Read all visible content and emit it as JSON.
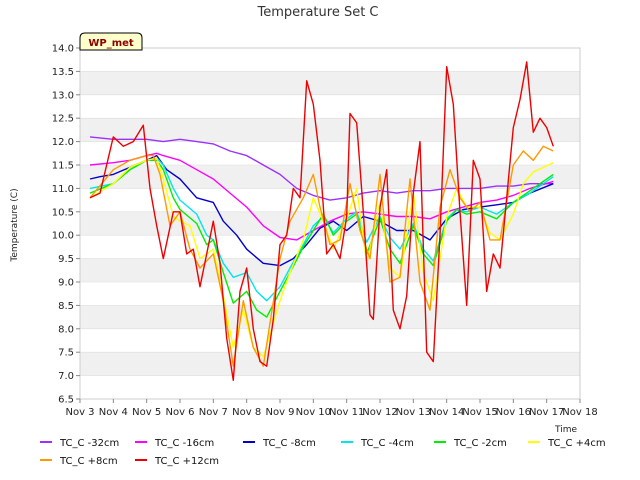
{
  "chart_data": {
    "type": "line",
    "title": "Temperature Set C",
    "xlabel": "Time",
    "ylabel": "Temperature (C)",
    "badge": "WP_met",
    "xlim": [
      3,
      18
    ],
    "ylim": [
      6.5,
      14.0
    ],
    "x_ticks": [
      {
        "v": 3,
        "label": "Nov 3"
      },
      {
        "v": 4,
        "label": "Nov 4"
      },
      {
        "v": 5,
        "label": "Nov 5"
      },
      {
        "v": 6,
        "label": "Nov 6"
      },
      {
        "v": 7,
        "label": "Nov 7"
      },
      {
        "v": 8,
        "label": "Nov 8"
      },
      {
        "v": 9,
        "label": "Nov 9"
      },
      {
        "v": 10,
        "label": "Nov 10"
      },
      {
        "v": 11,
        "label": "Nov 11"
      },
      {
        "v": 12,
        "label": "Nov 12"
      },
      {
        "v": 13,
        "label": "Nov 13"
      },
      {
        "v": 14,
        "label": "Nov 14"
      },
      {
        "v": 15,
        "label": "Nov 15"
      },
      {
        "v": 16,
        "label": "Nov 16"
      },
      {
        "v": 17,
        "label": "Nov 17"
      },
      {
        "v": 18,
        "label": "Nov 18"
      }
    ],
    "y_ticks": [
      "6.5",
      "7.0",
      "7.5",
      "8.0",
      "8.5",
      "9.0",
      "9.5",
      "10.0",
      "10.5",
      "11.0",
      "11.5",
      "12.0",
      "12.5",
      "13.0",
      "13.5",
      "14.0"
    ],
    "grid": "horizontal bands",
    "legend_position": "bottom",
    "series": [
      {
        "name": "TC_C -32cm",
        "color": "#9b30ff",
        "x": [
          3.3,
          4,
          5,
          5.5,
          6,
          6.5,
          7,
          7.5,
          8,
          8.5,
          9,
          9.5,
          10,
          10.5,
          11,
          11.5,
          12,
          12.5,
          13,
          13.5,
          14,
          14.5,
          15,
          15.5,
          16,
          16.5,
          17.2
        ],
        "y": [
          12.1,
          12.05,
          12.05,
          12.0,
          12.05,
          12.0,
          11.95,
          11.8,
          11.7,
          11.5,
          11.3,
          11.0,
          10.85,
          10.75,
          10.8,
          10.9,
          10.95,
          10.9,
          10.95,
          10.95,
          11.0,
          11.0,
          11.0,
          11.05,
          11.05,
          11.1,
          11.1
        ]
      },
      {
        "name": "TC_C -16cm",
        "color": "#ff00ff",
        "x": [
          3.3,
          4,
          4.5,
          5,
          5.3,
          5.5,
          6,
          6.5,
          7,
          7.5,
          8,
          8.5,
          9,
          9.5,
          10,
          10.5,
          11,
          11.5,
          12,
          12.5,
          13,
          13.5,
          14,
          14.5,
          15,
          15.5,
          16,
          16.5,
          17.2
        ],
        "y": [
          11.5,
          11.55,
          11.6,
          11.7,
          11.75,
          11.7,
          11.6,
          11.4,
          11.2,
          10.9,
          10.6,
          10.2,
          9.95,
          9.9,
          10.1,
          10.3,
          10.45,
          10.5,
          10.45,
          10.4,
          10.4,
          10.35,
          10.5,
          10.6,
          10.7,
          10.75,
          10.85,
          11.0,
          11.15
        ]
      },
      {
        "name": "TC_C -8cm",
        "color": "#0000cc",
        "x": [
          3.3,
          3.6,
          4,
          4.5,
          5,
          5.3,
          5.6,
          6,
          6.5,
          7,
          7.3,
          7.7,
          8,
          8.5,
          9,
          9.4,
          9.8,
          10.2,
          10.6,
          11,
          11.5,
          12,
          12.5,
          13,
          13.5,
          14,
          14.5,
          15,
          15.5,
          16,
          16.5,
          17.2
        ],
        "y": [
          11.2,
          11.25,
          11.3,
          11.45,
          11.6,
          11.7,
          11.4,
          11.2,
          10.8,
          10.7,
          10.3,
          10.0,
          9.7,
          9.4,
          9.35,
          9.5,
          9.8,
          10.15,
          10.3,
          10.1,
          10.4,
          10.3,
          10.1,
          10.1,
          9.9,
          10.35,
          10.55,
          10.6,
          10.65,
          10.7,
          10.9,
          11.1
        ]
      },
      {
        "name": "TC_C -4cm",
        "color": "#00e5ee",
        "x": [
          3.3,
          4,
          4.5,
          5,
          5.3,
          5.5,
          5.8,
          6,
          6.5,
          6.8,
          7,
          7.3,
          7.6,
          8,
          8.3,
          8.6,
          9,
          9.3,
          9.7,
          10,
          10.3,
          10.6,
          11,
          11.3,
          11.6,
          12,
          12.3,
          12.6,
          13,
          13.3,
          13.6,
          14,
          14.3,
          14.6,
          15,
          15.5,
          16,
          16.5,
          17.2
        ],
        "y": [
          11.0,
          11.1,
          11.4,
          11.6,
          11.65,
          11.5,
          11.0,
          10.75,
          10.45,
          10.0,
          9.9,
          9.4,
          9.1,
          9.2,
          8.8,
          8.6,
          8.9,
          9.3,
          9.8,
          10.2,
          10.4,
          10.05,
          10.35,
          10.5,
          9.85,
          10.4,
          9.95,
          9.7,
          10.25,
          9.7,
          9.45,
          10.35,
          10.55,
          10.5,
          10.6,
          10.45,
          10.7,
          10.9,
          11.25
        ]
      },
      {
        "name": "TC_C -2cm",
        "color": "#00ee00",
        "x": [
          3.3,
          4,
          4.5,
          5,
          5.3,
          5.5,
          5.8,
          6,
          6.5,
          6.8,
          7,
          7.3,
          7.6,
          8,
          8.3,
          8.6,
          9,
          9.3,
          9.7,
          10,
          10.3,
          10.6,
          11,
          11.3,
          11.6,
          12,
          12.3,
          12.6,
          13,
          13.3,
          13.6,
          14,
          14.3,
          14.6,
          15,
          15.5,
          16,
          16.5,
          17.2
        ],
        "y": [
          10.9,
          11.1,
          11.4,
          11.6,
          11.6,
          11.4,
          10.8,
          10.55,
          10.25,
          9.8,
          9.9,
          9.2,
          8.55,
          8.8,
          8.4,
          8.25,
          8.8,
          9.2,
          9.75,
          10.1,
          10.45,
          10.0,
          10.3,
          10.45,
          9.6,
          10.35,
          9.7,
          9.4,
          10.2,
          9.6,
          9.35,
          10.3,
          10.55,
          10.45,
          10.5,
          10.35,
          10.7,
          10.95,
          11.3
        ]
      },
      {
        "name": "TC_C +4cm",
        "color": "#ffff00",
        "x": [
          3.3,
          4,
          4.5,
          5,
          5.3,
          5.5,
          5.8,
          6,
          6.3,
          6.6,
          7,
          7.3,
          7.6,
          7.9,
          8.2,
          8.5,
          9,
          9.3,
          9.7,
          10,
          10.3,
          10.6,
          11,
          11.3,
          11.6,
          12,
          12.3,
          12.6,
          13,
          13.3,
          13.6,
          14,
          14.3,
          14.6,
          15,
          15.3,
          15.6,
          16,
          16.3,
          16.6,
          17.2
        ],
        "y": [
          10.8,
          11.1,
          11.45,
          11.6,
          11.65,
          11.2,
          10.4,
          10.3,
          10.2,
          9.5,
          9.7,
          8.7,
          7.6,
          8.4,
          7.6,
          7.4,
          8.6,
          9.2,
          9.9,
          10.8,
          10.3,
          9.7,
          10.35,
          11.0,
          9.4,
          10.7,
          9.3,
          9.1,
          10.9,
          9.2,
          8.6,
          10.4,
          11.0,
          10.6,
          10.6,
          10.05,
          9.9,
          10.45,
          11.1,
          11.35,
          11.55
        ]
      },
      {
        "name": "TC_C +8cm",
        "color": "#ff9900",
        "x": [
          3.3,
          4,
          4.5,
          5,
          5.2,
          5.4,
          5.7,
          6,
          6.3,
          6.6,
          7,
          7.3,
          7.6,
          7.9,
          8.2,
          8.5,
          9,
          9.3,
          9.7,
          10,
          10.2,
          10.5,
          10.8,
          11.1,
          11.4,
          11.7,
          12,
          12.3,
          12.6,
          12.9,
          13.2,
          13.5,
          13.8,
          14.1,
          14.4,
          14.7,
          15,
          15.3,
          15.6,
          16,
          16.3,
          16.6,
          16.9,
          17.2
        ],
        "y": [
          10.8,
          11.4,
          11.6,
          11.7,
          11.7,
          11.3,
          10.2,
          10.5,
          9.7,
          9.3,
          9.6,
          8.6,
          7.2,
          8.6,
          7.6,
          7.2,
          9.5,
          10.3,
          10.8,
          11.3,
          10.6,
          9.8,
          9.9,
          11.1,
          10.1,
          9.5,
          11.3,
          9.0,
          9.1,
          11.2,
          9.0,
          8.4,
          10.6,
          11.4,
          10.8,
          10.5,
          10.7,
          9.9,
          9.9,
          11.5,
          11.8,
          11.6,
          11.9,
          11.8
        ]
      },
      {
        "name": "TC_C +12cm",
        "color": "#ee0000",
        "x": [
          3.3,
          3.6,
          4,
          4.3,
          4.6,
          4.9,
          5.1,
          5.3,
          5.5,
          5.8,
          6.0,
          6.2,
          6.4,
          6.6,
          6.8,
          7.0,
          7.2,
          7.4,
          7.6,
          7.8,
          8.0,
          8.2,
          8.4,
          8.6,
          8.8,
          9.0,
          9.2,
          9.4,
          9.6,
          9.8,
          10.0,
          10.2,
          10.4,
          10.6,
          10.8,
          11.0,
          11.1,
          11.3,
          11.5,
          11.7,
          11.8,
          12.0,
          12.2,
          12.4,
          12.6,
          12.8,
          13.0,
          13.2,
          13.4,
          13.6,
          13.8,
          14.0,
          14.2,
          14.4,
          14.6,
          14.8,
          15.0,
          15.2,
          15.4,
          15.6,
          15.8,
          16.0,
          16.2,
          16.4,
          16.6,
          16.8,
          17.0,
          17.2
        ],
        "y": [
          10.8,
          10.9,
          12.1,
          11.9,
          12.0,
          12.35,
          11.0,
          10.2,
          9.5,
          10.5,
          10.5,
          9.6,
          9.7,
          8.9,
          9.6,
          10.3,
          9.4,
          7.8,
          6.9,
          8.8,
          9.3,
          8.0,
          7.3,
          7.2,
          8.2,
          9.8,
          10.0,
          11.0,
          10.8,
          13.3,
          12.8,
          11.6,
          9.6,
          9.8,
          9.5,
          10.4,
          12.6,
          12.4,
          10.5,
          8.3,
          8.2,
          10.6,
          11.4,
          8.4,
          8.0,
          8.7,
          10.9,
          12.0,
          7.5,
          7.3,
          10.0,
          13.6,
          12.8,
          10.5,
          8.5,
          11.6,
          11.2,
          8.8,
          9.6,
          9.3,
          10.8,
          12.3,
          12.9,
          13.7,
          12.2,
          12.5,
          12.3,
          11.9
        ]
      }
    ]
  }
}
